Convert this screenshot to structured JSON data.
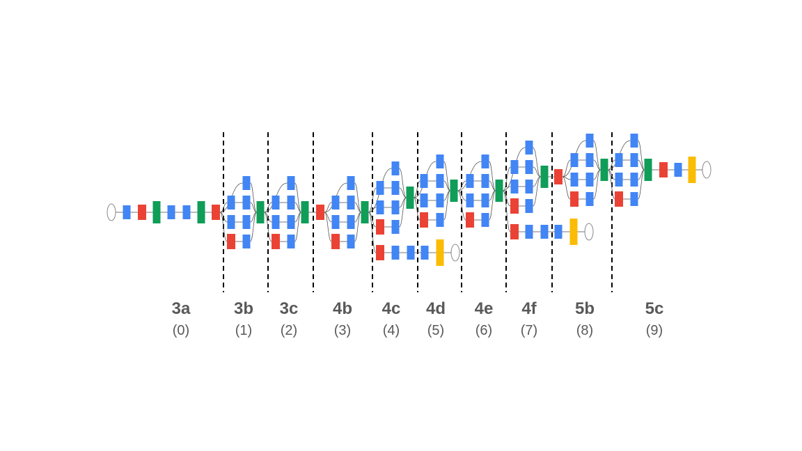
{
  "diagram": {
    "colors": {
      "conv": "#4285f4",
      "pool": "#ea4335",
      "concat": "#0f9d58",
      "softmax": "#fbbc05",
      "io": "#ffffff",
      "edge": "#555555",
      "divider": "#000000",
      "label": "#595959"
    },
    "stages": [
      {
        "name": "3a",
        "index": "(0)"
      },
      {
        "name": "3b",
        "index": "(1)"
      },
      {
        "name": "3c",
        "index": "(2)"
      },
      {
        "name": "4b",
        "index": "(3)"
      },
      {
        "name": "4c",
        "index": "(4)"
      },
      {
        "name": "4d",
        "index": "(5)"
      },
      {
        "name": "4e",
        "index": "(6)"
      },
      {
        "name": "4f",
        "index": "(7)"
      },
      {
        "name": "5b",
        "index": "(8)"
      },
      {
        "name": "5c",
        "index": "(9)"
      }
    ]
  }
}
